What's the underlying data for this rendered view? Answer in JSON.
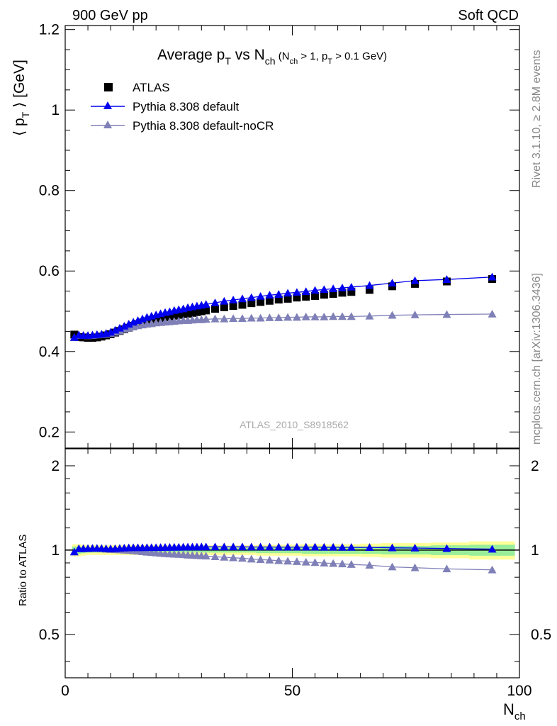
{
  "header": {
    "left": "900 GeV pp",
    "right": "Soft QCD"
  },
  "side_text": {
    "rivet": "Rivet 3.1.10, ≥ 2.8M events",
    "source": "mcplots.cern.ch [arXiv:1306.3436]"
  },
  "watermark": "ATLAS_2010_S8918562",
  "title": {
    "main": "Average p",
    "main_sub": "T",
    "vs": " vs N",
    "vs_sub": "ch",
    "cond_open": " (N",
    "cond_sub1": "ch",
    "cond_mid": " > 1, p",
    "cond_sub2": "T",
    "cond_close": " > 0.1 GeV)"
  },
  "axes": {
    "ylabel_main": "⟨ p",
    "ylabel_sub": "T",
    "ylabel_tail": " ⟩  [GeV]",
    "ylabel_ratio": "Ratio to ATLAS",
    "xlabel": "N",
    "xlabel_sub": "ch"
  },
  "legend": [
    {
      "label": "ATLAS",
      "marker": "square",
      "color": "#000000"
    },
    {
      "label": "Pythia 8.308 default",
      "marker": "triangle",
      "color": "#0000ee"
    },
    {
      "label": "Pythia 8.308 default-noCR",
      "marker": "triangle",
      "color": "#8080b8"
    }
  ],
  "chart_data": [
    {
      "type": "scatter",
      "panel": "main",
      "xlim": [
        0,
        100
      ],
      "ylim": [
        0.16,
        1.21
      ],
      "yticks": [
        "0.2",
        "0.4",
        "0.6",
        "0.8",
        "1",
        "1.2"
      ],
      "ytick_values": [
        0.2,
        0.4,
        0.6,
        0.8,
        1.0,
        1.2
      ],
      "x": [
        2,
        3,
        4,
        5,
        6,
        7,
        8,
        9,
        10,
        11,
        12,
        13,
        14,
        15,
        16,
        17,
        18,
        19,
        20,
        21,
        22,
        23,
        24,
        25,
        26,
        27,
        28,
        29,
        30,
        31,
        33,
        35,
        37,
        39,
        41,
        43,
        45,
        47,
        49,
        51,
        53,
        55,
        57,
        59,
        61,
        63,
        67,
        72,
        77,
        84,
        94
      ],
      "series": [
        {
          "name": "ATLAS",
          "color": "#000000",
          "values": [
            0.442,
            0.436,
            0.435,
            0.434,
            0.434,
            0.435,
            0.437,
            0.44,
            0.443,
            0.447,
            0.451,
            0.455,
            0.459,
            0.464,
            0.468,
            0.472,
            0.475,
            0.478,
            0.481,
            0.483,
            0.485,
            0.487,
            0.489,
            0.491,
            0.493,
            0.494,
            0.496,
            0.498,
            0.5,
            0.502,
            0.506,
            0.51,
            0.513,
            0.516,
            0.52,
            0.523,
            0.526,
            0.529,
            0.531,
            0.534,
            0.536,
            0.538,
            0.541,
            0.543,
            0.546,
            0.548,
            0.553,
            0.562,
            0.568,
            0.574,
            0.58
          ]
        },
        {
          "name": "Pythia 8.308 default",
          "color": "#0000ee",
          "values": [
            0.435,
            0.441,
            0.44,
            0.44,
            0.441,
            0.442,
            0.443,
            0.445,
            0.448,
            0.453,
            0.458,
            0.463,
            0.468,
            0.473,
            0.477,
            0.481,
            0.485,
            0.488,
            0.491,
            0.494,
            0.497,
            0.499,
            0.502,
            0.504,
            0.506,
            0.509,
            0.511,
            0.513,
            0.515,
            0.517,
            0.521,
            0.525,
            0.528,
            0.531,
            0.534,
            0.537,
            0.54,
            0.542,
            0.545,
            0.547,
            0.549,
            0.552,
            0.554,
            0.556,
            0.558,
            0.56,
            0.564,
            0.57,
            0.576,
            0.579,
            0.585
          ]
        },
        {
          "name": "Pythia 8.308 default-noCR",
          "color": "#8080b8",
          "values": [
            0.435,
            0.44,
            0.44,
            0.439,
            0.44,
            0.441,
            0.442,
            0.443,
            0.445,
            0.448,
            0.451,
            0.455,
            0.458,
            0.461,
            0.464,
            0.466,
            0.468,
            0.469,
            0.471,
            0.472,
            0.473,
            0.474,
            0.475,
            0.476,
            0.477,
            0.477,
            0.478,
            0.479,
            0.479,
            0.48,
            0.481,
            0.481,
            0.482,
            0.482,
            0.483,
            0.483,
            0.484,
            0.484,
            0.485,
            0.485,
            0.486,
            0.486,
            0.486,
            0.487,
            0.487,
            0.487,
            0.488,
            0.49,
            0.491,
            0.492,
            0.493
          ]
        }
      ]
    },
    {
      "type": "scatter",
      "panel": "ratio",
      "xlim": [
        0,
        100
      ],
      "ylim": [
        0.35,
        2.3
      ],
      "yticks": [
        "0.5",
        "1",
        "2"
      ],
      "ytick_values": [
        0.5,
        1.0,
        2.0
      ],
      "xticks": [
        "0",
        "50",
        "100"
      ],
      "xtick_values": [
        0,
        50,
        100
      ],
      "x": [
        2,
        3,
        4,
        5,
        6,
        7,
        8,
        9,
        10,
        11,
        12,
        13,
        14,
        15,
        16,
        17,
        18,
        19,
        20,
        21,
        22,
        23,
        24,
        25,
        26,
        27,
        28,
        29,
        30,
        31,
        33,
        35,
        37,
        39,
        41,
        43,
        45,
        47,
        49,
        51,
        53,
        55,
        57,
        59,
        61,
        63,
        67,
        72,
        77,
        84,
        94
      ],
      "series": [
        {
          "name": "Pythia 8.308 default",
          "color": "#0000ee",
          "values": [
            0.985,
            1.012,
            1.012,
            1.013,
            1.015,
            1.015,
            1.014,
            1.012,
            1.011,
            1.012,
            1.015,
            1.017,
            1.019,
            1.02,
            1.02,
            1.02,
            1.021,
            1.021,
            1.021,
            1.022,
            1.023,
            1.023,
            1.024,
            1.024,
            1.025,
            1.026,
            1.026,
            1.026,
            1.027,
            1.027,
            1.027,
            1.027,
            1.027,
            1.027,
            1.026,
            1.026,
            1.026,
            1.025,
            1.025,
            1.025,
            1.025,
            1.025,
            1.024,
            1.024,
            1.023,
            1.023,
            1.022,
            1.019,
            1.017,
            1.013,
            1.008
          ]
        },
        {
          "name": "Pythia 8.308 default-noCR",
          "color": "#8080b8",
          "values": [
            0.985,
            1.01,
            1.011,
            1.012,
            1.014,
            1.013,
            1.012,
            1.008,
            1.005,
            1.003,
            1.002,
            1.0,
            0.998,
            0.994,
            0.991,
            0.987,
            0.983,
            0.98,
            0.977,
            0.974,
            0.971,
            0.969,
            0.967,
            0.965,
            0.963,
            0.96,
            0.958,
            0.956,
            0.954,
            0.952,
            0.947,
            0.943,
            0.939,
            0.935,
            0.929,
            0.925,
            0.921,
            0.917,
            0.913,
            0.91,
            0.906,
            0.903,
            0.899,
            0.896,
            0.893,
            0.889,
            0.883,
            0.871,
            0.865,
            0.857,
            0.85
          ]
        }
      ],
      "band_inner": [
        0.03,
        0.03,
        0.025,
        0.02,
        0.02,
        0.02,
        0.02,
        0.02,
        0.02,
        0.02,
        0.02,
        0.02,
        0.02,
        0.02,
        0.02,
        0.02,
        0.02,
        0.02,
        0.02,
        0.02,
        0.02,
        0.02,
        0.02,
        0.02,
        0.02,
        0.02,
        0.02,
        0.02,
        0.02,
        0.02,
        0.02,
        0.02,
        0.02,
        0.02,
        0.02,
        0.025,
        0.025,
        0.025,
        0.025,
        0.025,
        0.03,
        0.03,
        0.03,
        0.03,
        0.03,
        0.03,
        0.03,
        0.035,
        0.035,
        0.04,
        0.045
      ],
      "band_outer": [
        0.05,
        0.05,
        0.045,
        0.04,
        0.04,
        0.04,
        0.04,
        0.04,
        0.04,
        0.04,
        0.04,
        0.04,
        0.04,
        0.04,
        0.04,
        0.04,
        0.04,
        0.04,
        0.04,
        0.04,
        0.04,
        0.04,
        0.04,
        0.04,
        0.04,
        0.04,
        0.04,
        0.04,
        0.04,
        0.04,
        0.04,
        0.04,
        0.04,
        0.04,
        0.04,
        0.045,
        0.045,
        0.045,
        0.045,
        0.045,
        0.05,
        0.05,
        0.05,
        0.05,
        0.05,
        0.05,
        0.055,
        0.06,
        0.06,
        0.065,
        0.075
      ]
    }
  ]
}
